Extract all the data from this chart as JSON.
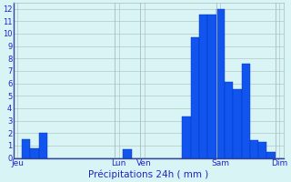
{
  "values": [
    0,
    1.5,
    0.8,
    2.0,
    0,
    0,
    0,
    0,
    0,
    0,
    0,
    0,
    0,
    0.7,
    0,
    0,
    0,
    0,
    0,
    0,
    3.3,
    9.7,
    11.5,
    11.5,
    12.0,
    6.1,
    5.5,
    7.6,
    1.4,
    1.3,
    0.5,
    0
  ],
  "n_bars": 32,
  "day_labels": [
    "Jeu",
    "Lun",
    "Ven",
    "Sam",
    "Dim"
  ],
  "day_tick_positions": [
    0.5,
    12.5,
    15.5,
    24.5,
    31.5
  ],
  "day_vline_positions": [
    0,
    12,
    15,
    24,
    31
  ],
  "xlabel": "Précipitations 24h ( mm )",
  "ylim": [
    0,
    12.5
  ],
  "yticks": [
    0,
    1,
    2,
    3,
    4,
    5,
    6,
    7,
    8,
    9,
    10,
    11,
    12
  ],
  "bar_color": "#1155ee",
  "bar_edge_color": "#0033bb",
  "bg_color": "#d8f4f4",
  "grid_color": "#aabbbb",
  "text_color": "#2222cc",
  "axis_color": "#334499"
}
